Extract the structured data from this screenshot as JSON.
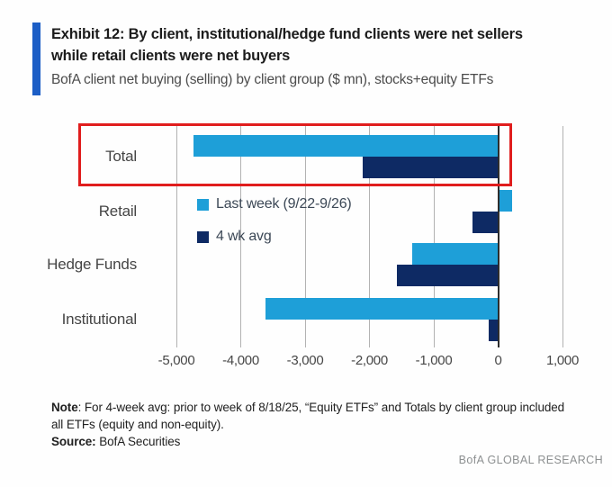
{
  "header": {
    "title_line1": "Exhibit 12: By client, institutional/hedge fund clients were net sellers",
    "title_line2": "while retail clients were net buyers",
    "subtitle": "BofA client net buying (selling) by client group ($ mn), stocks+equity ETFs"
  },
  "chart_data": {
    "type": "bar",
    "orientation": "horizontal",
    "title": "Exhibit 12: By client, institutional/hedge fund clients were net sellers while retail clients were net buyers",
    "subtitle": "BofA client net buying (selling) by client group ($ mn), stocks+equity ETFs",
    "unit": "$ mn",
    "categories": [
      "Total",
      "Retail",
      "Hedge Funds",
      "Institutional"
    ],
    "series": [
      {
        "name": "Last week (9/22-9/26)",
        "color": "#1E9FD8",
        "values": [
          -4740,
          210,
          -1340,
          -3620
        ]
      },
      {
        "name": "4 wk avg",
        "color": "#0E2A64",
        "values": [
          -2100,
          -400,
          -1580,
          -140
        ]
      }
    ],
    "xlim": [
      -5000,
      1000
    ],
    "x_ticks": [
      -5000,
      -4000,
      -3000,
      -2000,
      -1000,
      0,
      1000
    ],
    "x_tick_labels": [
      "-5,000",
      "-4,000",
      "-3,000",
      "-2,000",
      "-1,000",
      "0",
      "1,000"
    ],
    "grid": true,
    "legend_position": "inside-top-left",
    "highlighted_category": "Total",
    "highlight_color": "#E01D1D"
  },
  "notes": {
    "note_label": "Note",
    "note_line1_rest": ": For 4-week avg: prior to week of 8/18/25, “Equity ETFs” and Totals by client group included",
    "note_line2": "all ETFs (equity and non-equity).",
    "source_label": "Source:",
    "source_text": " BofA Securities"
  },
  "footer": {
    "brand": "BofA GLOBAL RESEARCH"
  },
  "colors": {
    "accent_bar": "#1C5EC6",
    "last_week": "#1E9FD8",
    "four_wk_avg": "#0E2A64",
    "highlight_box": "#E01D1D",
    "gridline": "#B2B2B2",
    "zero_axis": "#2D2D2D"
  }
}
